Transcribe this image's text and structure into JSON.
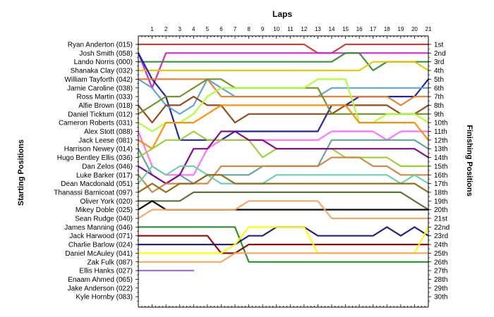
{
  "chart_data": {
    "type": "line",
    "title": "Laps",
    "ylabel_left": "Starting Positions",
    "ylabel_right": "Finishing Positions",
    "laps": [
      1,
      2,
      3,
      4,
      5,
      6,
      7,
      8,
      9,
      10,
      11,
      12,
      13,
      14,
      15,
      16,
      17,
      18,
      19,
      20,
      21
    ],
    "starting_positions": [
      "Ryan Anderton (015)",
      "Josh Smith (058)",
      "Lando Norris (000)",
      "Shanaka Clay (032)",
      "William Tayforth (042)",
      "Jamie Caroline (038)",
      "Ross Martin (033)",
      "Alfie Brown (018)",
      "Daniel Ticktum (012)",
      "Cameron Roberts (031)",
      "Alex Stott (088)",
      "Jack Leese (081)",
      "Harrison Newey (014)",
      "Hugo Bentley Ellis (036)",
      "Dan Zelos (046)",
      "Luke Barker (017)",
      "Dean Macdonald (051)",
      "Thanassi Barnicoat (097)",
      "Oliver York (020)",
      "Mikey Doble (025)",
      "Sean Rudge (040)",
      "James Manning (046)",
      "Jack Harwood (071)",
      "Charlie Barlow (024)",
      "Daniel McAuley (041)",
      "Zak Fulk (087)",
      "Ellis Hanks (027)",
      "Enaam Ahmed (065)",
      "Jake Anderson (022)",
      "Kyle Hornby (083)"
    ],
    "finishing_positions": [
      "1st",
      "2nd",
      "3rd",
      "4th",
      "5th",
      "6th",
      "7th",
      "8th",
      "9th",
      "10th",
      "11th",
      "12th",
      "13th",
      "14th",
      "15th",
      "16th",
      "17th",
      "18th",
      "19th",
      "20th",
      "21st",
      "22nd",
      "23rd",
      "24th",
      "25th",
      "26th",
      "27th",
      "28th",
      "29th",
      "30th"
    ],
    "series": [
      {
        "color": "#c0392b",
        "values": [
          1,
          1,
          1,
          1,
          1,
          1,
          1,
          1,
          1,
          1,
          1,
          1,
          1,
          2,
          2,
          1,
          1,
          1,
          1,
          1,
          1,
          1
        ]
      },
      {
        "color": "#cc22cc",
        "values": [
          2,
          6,
          2,
          2,
          2,
          2,
          2,
          2,
          2,
          2,
          2,
          2,
          2,
          2,
          2,
          2,
          2,
          2,
          2,
          2,
          2,
          2
        ]
      },
      {
        "color": "#2e8b2e",
        "values": [
          3,
          3,
          3,
          3,
          3,
          3,
          3,
          3,
          3,
          3,
          3,
          3,
          3,
          3,
          3,
          2,
          2,
          4,
          3,
          3,
          3,
          3
        ]
      },
      {
        "color": "#e0c800",
        "values": [
          4,
          4,
          4,
          4,
          4,
          4,
          4,
          4,
          4,
          4,
          4,
          4,
          4,
          4,
          4,
          4,
          4,
          3,
          3,
          3,
          3,
          4
        ]
      },
      {
        "color": "#1a1aa0",
        "values": [
          2,
          5,
          7,
          12,
          12,
          12,
          12,
          11,
          11,
          11,
          11,
          11,
          11,
          11,
          8,
          8,
          7,
          7,
          7,
          7,
          7,
          5
        ]
      },
      {
        "color": "#5a9fd4",
        "values": [
          5,
          6,
          8,
          9,
          8,
          5,
          6,
          7,
          7,
          7,
          7,
          7,
          7,
          7,
          6,
          6,
          6,
          6,
          6,
          6,
          6,
          6
        ]
      },
      {
        "color": "#e08030",
        "values": [
          5,
          5,
          5,
          5,
          5,
          5,
          7,
          7,
          7,
          7,
          7,
          7,
          7,
          7,
          7,
          7,
          7,
          7,
          7,
          8,
          7,
          7
        ]
      },
      {
        "color": "#8b4513",
        "values": [
          8,
          10,
          8,
          8,
          7,
          8,
          8,
          10,
          9,
          9,
          9,
          9,
          9,
          9,
          9,
          8,
          8,
          8,
          8,
          9,
          9,
          8
        ]
      },
      {
        "color": "#6b8e23",
        "values": [
          9,
          8,
          7,
          7,
          6,
          5,
          5,
          6,
          6,
          6,
          6,
          6,
          6,
          6,
          9,
          9,
          9,
          9,
          9,
          9,
          9,
          9
        ]
      },
      {
        "color": "#adff2f",
        "values": [
          10,
          11,
          10,
          10,
          9,
          7,
          6,
          6,
          6,
          6,
          6,
          6,
          6,
          5,
          5,
          5,
          10,
          10,
          9,
          9,
          9,
          10
        ]
      },
      {
        "color": "#ff6bff",
        "values": [
          11,
          15,
          16,
          16,
          16,
          13,
          12,
          12,
          12,
          12,
          12,
          12,
          12,
          12,
          11,
          11,
          11,
          11,
          12,
          11,
          11,
          11
        ]
      },
      {
        "color": "#ff8c00",
        "values": [
          12,
          13,
          10,
          10,
          10,
          9,
          8,
          8,
          8,
          8,
          8,
          8,
          8,
          8,
          8,
          8,
          10,
          10,
          10,
          10,
          10,
          12
        ]
      },
      {
        "color": "#5f9ea0",
        "values": [
          13,
          16,
          17,
          16,
          17,
          16,
          16,
          16,
          16,
          15,
          15,
          15,
          15,
          15,
          12,
          12,
          12,
          12,
          12,
          12,
          12,
          13
        ]
      },
      {
        "color": "#9acd32",
        "values": [
          14,
          13,
          12,
          12,
          11,
          12,
          12,
          12,
          12,
          14,
          13,
          13,
          13,
          13,
          13,
          14,
          14,
          14,
          14,
          15,
          15,
          15
        ]
      },
      {
        "color": "#800080",
        "values": [
          15,
          16,
          17,
          16,
          13,
          13,
          11,
          11,
          12,
          12,
          13,
          13,
          13,
          13,
          13,
          13,
          13,
          13,
          13,
          13,
          13,
          14
        ]
      },
      {
        "color": "#cd853f",
        "values": [
          16,
          18,
          17,
          17,
          17,
          17,
          15,
          15,
          15,
          15,
          15,
          15,
          15,
          15,
          14,
          14,
          14,
          15,
          15,
          16,
          16,
          16
        ]
      },
      {
        "color": "#66cdaa",
        "values": [
          17,
          15,
          16,
          15,
          15,
          16,
          17,
          17,
          17,
          17,
          16,
          16,
          16,
          16,
          16,
          16,
          16,
          16,
          16,
          17,
          16,
          17
        ]
      },
      {
        "color": "#8b6914",
        "values": [
          18,
          17,
          18,
          17,
          17,
          16,
          16,
          17,
          17,
          17,
          17,
          17,
          17,
          17,
          17,
          17,
          17,
          17,
          17,
          17,
          17,
          18
        ]
      },
      {
        "color": "#556b2f",
        "values": [
          19,
          19,
          19,
          19,
          18,
          18,
          18,
          18,
          18,
          18,
          18,
          18,
          18,
          18,
          18,
          18,
          18,
          18,
          18,
          18,
          19,
          20
        ]
      },
      {
        "color": "#000000",
        "values": [
          20,
          19,
          20,
          20,
          20,
          20,
          20,
          20,
          20,
          20,
          20,
          20,
          20,
          20,
          20,
          20,
          20,
          20,
          20,
          20,
          20,
          20
        ]
      },
      {
        "color": "#f4a460",
        "values": [
          21,
          20,
          20,
          20,
          20,
          20,
          20,
          20,
          19,
          19,
          19,
          19,
          19,
          19,
          21,
          21,
          21,
          21,
          21,
          21,
          21,
          21
        ]
      },
      {
        "color": "#228b22",
        "values": [
          22,
          22,
          22,
          22,
          22,
          22,
          22,
          22,
          26,
          26,
          26,
          26,
          26,
          26,
          26,
          26,
          26,
          26,
          26,
          26,
          26,
          26
        ]
      },
      {
        "color": "#8b0000",
        "values": [
          23,
          23,
          23,
          23,
          23,
          23,
          25,
          25,
          24,
          24,
          24,
          24,
          24,
          24,
          24,
          24,
          24,
          24,
          24,
          24,
          24,
          24
        ]
      },
      {
        "color": "#191970",
        "values": [
          24,
          24,
          24,
          24,
          24,
          24,
          24,
          24,
          23,
          23,
          22,
          22,
          22,
          23,
          23,
          23,
          23,
          23,
          22,
          23,
          22,
          23
        ]
      },
      {
        "color": "#ffff00",
        "values": [
          25,
          25,
          25,
          25,
          25,
          25,
          25,
          24,
          22,
          22,
          22,
          22,
          22,
          25,
          25,
          25,
          25,
          25,
          25,
          25,
          25,
          22
        ]
      },
      {
        "color": "#f4a460",
        "values": [
          26,
          26,
          26,
          26,
          26,
          26,
          26,
          25,
          25,
          25,
          25,
          25,
          25,
          25,
          25,
          25,
          25,
          25,
          25,
          25,
          25,
          25
        ]
      },
      {
        "color": "#9370db",
        "values": [
          27,
          27,
          27,
          27,
          27
        ]
      }
    ]
  }
}
